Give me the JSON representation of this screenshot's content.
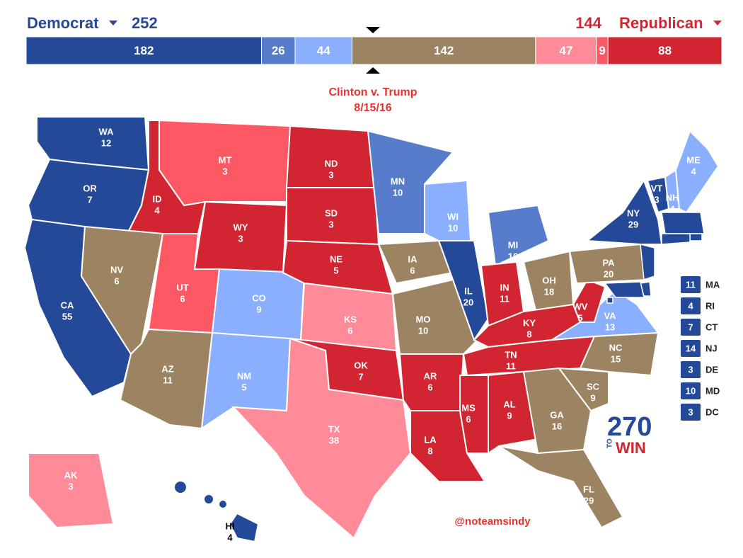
{
  "header": {
    "left_party": "Democrat",
    "left_total": "252",
    "right_total": "144",
    "right_party": "Republican",
    "left_color": "#244999",
    "right_color": "#d22532"
  },
  "bar": {
    "segments": [
      {
        "value": 182,
        "color": "#244999"
      },
      {
        "value": 26,
        "color": "#577ccc"
      },
      {
        "value": 44,
        "color": "#8aafff"
      },
      {
        "value": 142,
        "color": "#9c8462"
      },
      {
        "value": 47,
        "color": "#ff8b98"
      },
      {
        "value": 9,
        "color": "#ff5865"
      },
      {
        "value": 88,
        "color": "#d22532"
      }
    ]
  },
  "title": "Clinton v. Trump",
  "date": "8/15/16",
  "states": [
    {
      "abbr": "WA",
      "ev": "12",
      "color": "#244999"
    },
    {
      "abbr": "OR",
      "ev": "7",
      "color": "#244999"
    },
    {
      "abbr": "CA",
      "ev": "55",
      "color": "#244999"
    },
    {
      "abbr": "ID",
      "ev": "4",
      "color": "#d22532"
    },
    {
      "abbr": "NV",
      "ev": "6",
      "color": "#9c8462"
    },
    {
      "abbr": "MT",
      "ev": "3",
      "color": "#ff5865"
    },
    {
      "abbr": "WY",
      "ev": "3",
      "color": "#d22532"
    },
    {
      "abbr": "UT",
      "ev": "6",
      "color": "#ff5865"
    },
    {
      "abbr": "AZ",
      "ev": "11",
      "color": "#9c8462"
    },
    {
      "abbr": "CO",
      "ev": "9",
      "color": "#8aafff"
    },
    {
      "abbr": "NM",
      "ev": "5",
      "color": "#8aafff"
    },
    {
      "abbr": "ND",
      "ev": "3",
      "color": "#d22532"
    },
    {
      "abbr": "SD",
      "ev": "3",
      "color": "#d22532"
    },
    {
      "abbr": "NE",
      "ev": "5",
      "color": "#d22532"
    },
    {
      "abbr": "KS",
      "ev": "6",
      "color": "#ff8b98"
    },
    {
      "abbr": "OK",
      "ev": "7",
      "color": "#d22532"
    },
    {
      "abbr": "TX",
      "ev": "38",
      "color": "#ff8b98"
    },
    {
      "abbr": "MN",
      "ev": "10",
      "color": "#577ccc"
    },
    {
      "abbr": "IA",
      "ev": "6",
      "color": "#9c8462"
    },
    {
      "abbr": "MO",
      "ev": "10",
      "color": "#9c8462"
    },
    {
      "abbr": "AR",
      "ev": "6",
      "color": "#d22532"
    },
    {
      "abbr": "LA",
      "ev": "8",
      "color": "#d22532"
    },
    {
      "abbr": "WI",
      "ev": "10",
      "color": "#8aafff"
    },
    {
      "abbr": "IL",
      "ev": "20",
      "color": "#244999"
    },
    {
      "abbr": "MI",
      "ev": "16",
      "color": "#577ccc"
    },
    {
      "abbr": "IN",
      "ev": "11",
      "color": "#d22532"
    },
    {
      "abbr": "OH",
      "ev": "18",
      "color": "#9c8462"
    },
    {
      "abbr": "KY",
      "ev": "8",
      "color": "#d22532"
    },
    {
      "abbr": "TN",
      "ev": "11",
      "color": "#d22532"
    },
    {
      "abbr": "MS",
      "ev": "6",
      "color": "#d22532"
    },
    {
      "abbr": "AL",
      "ev": "9",
      "color": "#d22532"
    },
    {
      "abbr": "GA",
      "ev": "16",
      "color": "#9c8462"
    },
    {
      "abbr": "FL",
      "ev": "29",
      "color": "#9c8462"
    },
    {
      "abbr": "SC",
      "ev": "9",
      "color": "#9c8462"
    },
    {
      "abbr": "NC",
      "ev": "15",
      "color": "#9c8462"
    },
    {
      "abbr": "VA",
      "ev": "13",
      "color": "#8aafff"
    },
    {
      "abbr": "WV",
      "ev": "5",
      "color": "#d22532"
    },
    {
      "abbr": "PA",
      "ev": "20",
      "color": "#9c8462"
    },
    {
      "abbr": "NY",
      "ev": "29",
      "color": "#244999"
    },
    {
      "abbr": "VT",
      "ev": "3",
      "color": "#244999"
    },
    {
      "abbr": "NH",
      "ev": "4",
      "color": "#8aafff"
    },
    {
      "abbr": "ME",
      "ev": "4",
      "color": "#8aafff"
    },
    {
      "abbr": "AK",
      "ev": "3",
      "color": "#ff8b98"
    },
    {
      "abbr": "HI",
      "ev": "4",
      "color": "#244999"
    }
  ],
  "small_states": [
    {
      "abbr": "MA",
      "ev": "11",
      "color": "#244999"
    },
    {
      "abbr": "RI",
      "ev": "4",
      "color": "#244999"
    },
    {
      "abbr": "CT",
      "ev": "7",
      "color": "#244999"
    },
    {
      "abbr": "NJ",
      "ev": "14",
      "color": "#244999"
    },
    {
      "abbr": "DE",
      "ev": "3",
      "color": "#244999"
    },
    {
      "abbr": "MD",
      "ev": "10",
      "color": "#244999"
    },
    {
      "abbr": "DC",
      "ev": "3",
      "color": "#244999"
    }
  ],
  "logo": {
    "number": "270",
    "to": "TO",
    "win": "WIN"
  },
  "credit": "@noteamsindy"
}
